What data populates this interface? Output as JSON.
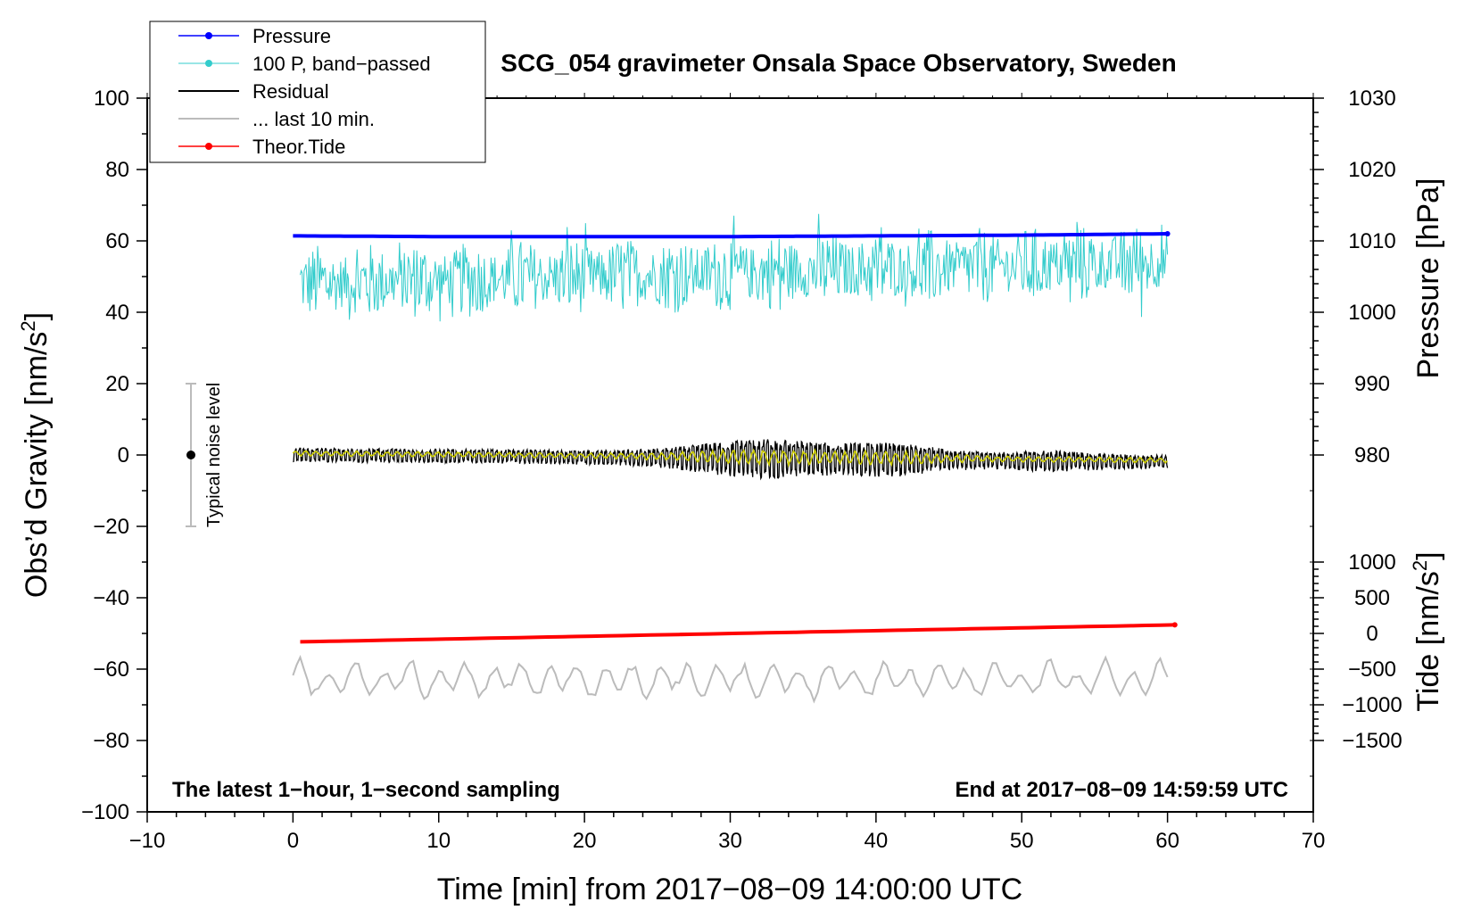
{
  "chart_data": {
    "type": "line",
    "title": "SCG_054 gravimeter Onsala Space Observatory, Sweden",
    "xlabel": "Time [min] from 2017−08−09 14:00:00 UTC",
    "ylabel": "Obs’d Gravity [nm/s²]",
    "ylabel_main": "Obs’d Gravity [nm/s",
    "ylabel_sup": "2",
    "ylabel_close": "]",
    "xlim": [
      -10,
      70
    ],
    "ylim": [
      -100,
      100
    ],
    "x_ticks": [
      -10,
      0,
      10,
      20,
      30,
      40,
      50,
      60,
      70
    ],
    "x_tick_labels": [
      "−10",
      "0",
      "10",
      "20",
      "30",
      "40",
      "50",
      "60",
      "70"
    ],
    "y_ticks": [
      -100,
      -80,
      -60,
      -40,
      -20,
      0,
      20,
      40,
      60,
      80,
      100
    ],
    "y_tick_labels": [
      "−100",
      "−80",
      "−60",
      "−40",
      "−20",
      "0",
      "20",
      "40",
      "60",
      "80",
      "100"
    ],
    "right_axes": {
      "pressure": {
        "label": "Pressure [hPa]",
        "ticks": [
          980,
          990,
          1000,
          1010,
          1020,
          1030
        ],
        "tick_labels": [
          "980",
          "990",
          "1000",
          "1010",
          "1020",
          "1030"
        ],
        "ref_value": 1010,
        "ref_gravity": 60,
        "gravity_per_unit": 2.0
      },
      "tide": {
        "label": "Tide [nm/s²]",
        "label_main": "Tide [nm/s",
        "label_sup": "2",
        "label_close": "]",
        "ticks": [
          -1500,
          -1000,
          -500,
          0,
          500,
          1000
        ],
        "tick_labels": [
          "−1500",
          "−1000",
          "−500",
          "0",
          "500",
          "1000"
        ],
        "ref_value": 0,
        "ref_gravity": -50,
        "gravity_per_unit": 0.02
      }
    },
    "series": [
      {
        "name": "Pressure",
        "axis": "pressure",
        "color": "#0000ff",
        "x": [
          0,
          10,
          20,
          30,
          40,
          50,
          60
        ],
        "values": [
          1010.7,
          1010.6,
          1010.6,
          1010.6,
          1010.7,
          1010.8,
          1011.0
        ]
      },
      {
        "name": "100 P, band−passed",
        "axis": "gravity",
        "color": "#33cccc",
        "x": [
          0,
          60
        ],
        "values": [
          48,
          54
        ],
        "note": "high-frequency oscillation, range approx 31 to 67"
      },
      {
        "name": "Residual",
        "axis": "gravity",
        "color": "#000000",
        "x": [
          0,
          60
        ],
        "values": [
          0,
          -2
        ],
        "note": "oscillation amplitude up to approx 8"
      },
      {
        "name": "... last 10 min.",
        "axis": "gravity",
        "color": "#bbbbbb",
        "x": [
          0,
          60
        ],
        "values": [
          -63,
          -63
        ],
        "note": "oscillation range approx -68 to -56"
      },
      {
        "name": "Theor.Tide",
        "axis": "tide",
        "color": "#ff0000",
        "x": [
          0,
          60.5
        ],
        "values": [
          -120,
          120
        ]
      },
      {
        "name": "Residual smoothed",
        "axis": "gravity",
        "color": "#cccc00",
        "x": [
          0,
          60
        ],
        "values": [
          0.5,
          -1.5
        ],
        "legend": false
      }
    ],
    "noise_bar": {
      "label": "Typical noise level",
      "x": -7,
      "center": 0,
      "low": -20,
      "high": 20
    },
    "annotations": {
      "bottom_left": "The latest 1−hour, 1−second sampling",
      "bottom_right": "End at 2017−08−09 14:59:59 UTC"
    },
    "legend_position": "top-left",
    "grid": false
  }
}
